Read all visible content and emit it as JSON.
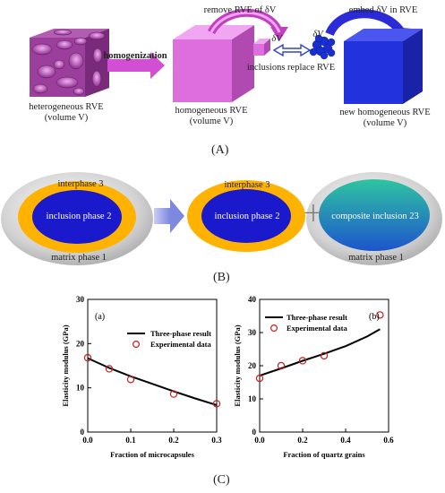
{
  "panelA": {
    "label": "(A)",
    "heterogeneous_label_1": "heterogeneous RVE",
    "heterogeneous_label_2": "(volume V)",
    "homogenization_label": "homogenization",
    "homogeneous_label_1": "homogeneous RVE",
    "homogeneous_label_2": "(volume V)",
    "remove_label": "remove RVE of δV",
    "dv_label_1": "δV",
    "dv_label_2": "δV",
    "embed_label": "embed δV in RVE",
    "replace_label": "inclusions replace RVE",
    "new_label_1": "new homogeneous RVE",
    "new_label_2": "(volume V)",
    "colors": {
      "purple": "#dd66dd",
      "blue": "#2233dd",
      "arrow_purple": "#cc33cc",
      "arrow_blue": "#2222dd"
    }
  },
  "panelB": {
    "label": "(B)",
    "left_interphase": "interphase 3",
    "left_inclusion": "inclusion phase 2",
    "left_matrix": "matrix phase 1",
    "mid_interphase": "interphase 3",
    "mid_inclusion": "inclusion phase 2",
    "plus": "+",
    "right_inclusion": "composite inclusion 23",
    "right_matrix": "matrix phase 1",
    "colors": {
      "matrix": "#c8c8c8",
      "interphase": "#ffb300",
      "inclusion": "#1a1acc",
      "composite_a": "#2ec4a0",
      "composite_b": "#1a55cc"
    }
  },
  "panelC": {
    "label": "(C)",
    "chart_data": [
      {
        "type": "line",
        "panel_tag": "(a)",
        "xlabel": "Fraction of microcapsules",
        "ylabel": "Elasticity modulus (GPa)",
        "xlim": [
          0.0,
          0.3
        ],
        "ylim": [
          0,
          30
        ],
        "xticks": [
          "0.0",
          "0.1",
          "0.2",
          "0.3"
        ],
        "yticks": [
          "0",
          "10",
          "20",
          "30"
        ],
        "legend": "top-right",
        "series": [
          {
            "name": "Three-phase result",
            "kind": "line",
            "x": [
              0.0,
              0.05,
              0.1,
              0.15,
              0.2,
              0.25,
              0.3
            ],
            "y": [
              16.7,
              14.5,
              12.6,
              10.9,
              9.2,
              7.6,
              6.1
            ]
          },
          {
            "name": "Experimental data",
            "kind": "marker",
            "x": [
              0.0,
              0.05,
              0.1,
              0.2,
              0.3
            ],
            "y": [
              16.8,
              14.3,
              11.9,
              8.6,
              6.4
            ]
          }
        ]
      },
      {
        "type": "line",
        "panel_tag": "(b)",
        "xlabel": "Fraction of quartz grains",
        "ylabel": "Elasticity modulus (GPa)",
        "xlim": [
          0.0,
          0.6
        ],
        "ylim": [
          0,
          40
        ],
        "xticks": [
          "0.0",
          "0.2",
          "0.4",
          "0.6"
        ],
        "yticks": [
          "0",
          "10",
          "20",
          "30",
          "40"
        ],
        "legend": "top-left",
        "series": [
          {
            "name": "Three-phase result",
            "kind": "line",
            "x": [
              0.0,
              0.1,
              0.2,
              0.3,
              0.4,
              0.5,
              0.56
            ],
            "y": [
              17.0,
              19.2,
              21.5,
              23.6,
              25.9,
              28.8,
              31.0
            ]
          },
          {
            "name": "Experimental data",
            "kind": "marker",
            "x": [
              0.0,
              0.1,
              0.2,
              0.3,
              0.56
            ],
            "y": [
              16.2,
              20.0,
              21.5,
              23.0,
              35.3
            ]
          }
        ]
      }
    ]
  }
}
